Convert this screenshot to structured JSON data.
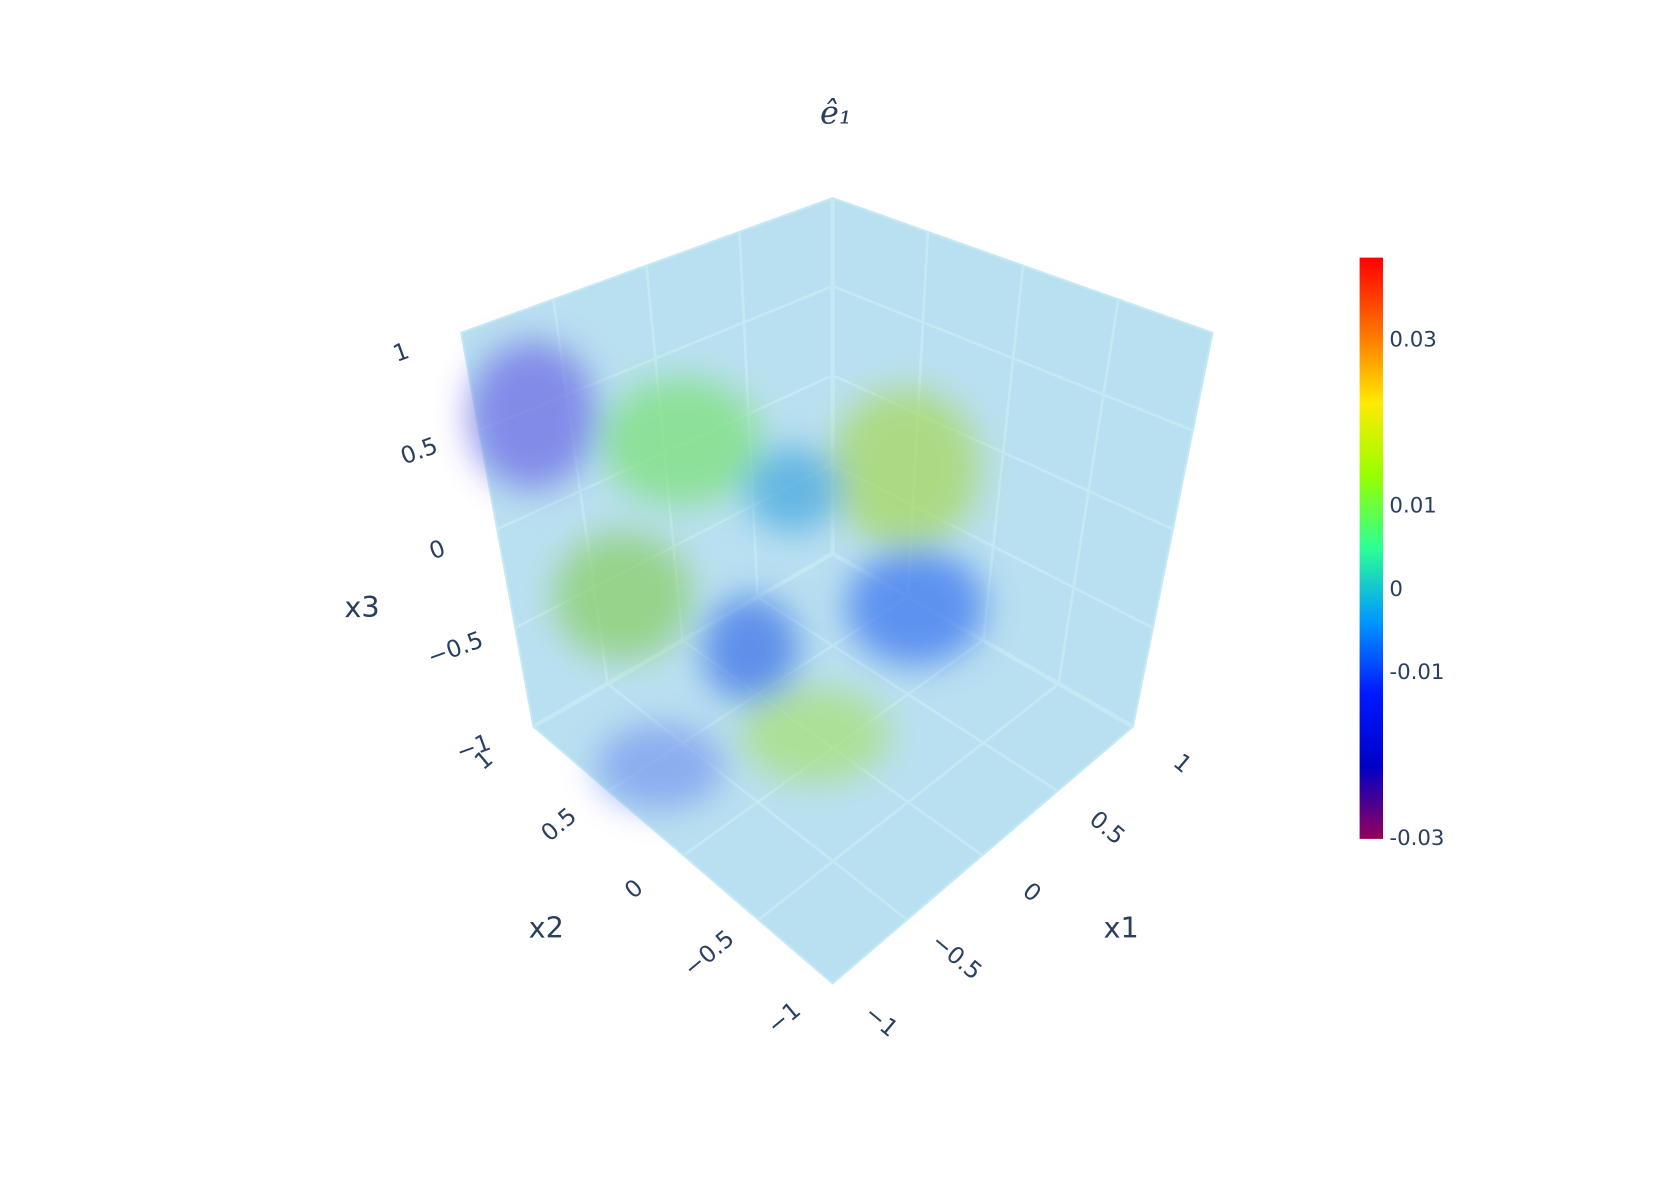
{
  "chart_data": {
    "type": "volume",
    "title": "ê₁",
    "axes": [
      {
        "title": "x1",
        "lim": [
          -1,
          1
        ],
        "ticks": [
          {
            "value": -1,
            "label": "−1"
          },
          {
            "value": -0.5,
            "label": "−0.5"
          },
          0,
          0.5,
          1
        ]
      },
      {
        "title": "x2",
        "lim": [
          -1,
          1
        ],
        "ticks": [
          {
            "value": -1,
            "label": "−1"
          },
          {
            "value": -0.5,
            "label": "−0.5"
          },
          0,
          0.5,
          1
        ]
      },
      {
        "title": "x3",
        "lim": [
          -1,
          1
        ],
        "ticks": [
          {
            "value": -1,
            "label": "−1"
          },
          {
            "value": -0.5,
            "label": "−0.5"
          },
          0,
          0.5,
          1
        ]
      }
    ],
    "colorbar": {
      "lim": [
        -0.03,
        0.04
      ],
      "ticks": [
        -0.03,
        -0.01,
        0,
        0.01,
        0.03
      ],
      "colorscale": [
        "#96005a",
        "#0000c8",
        "#0019ff",
        "#0098ff",
        "#2cff96",
        "#97ff00",
        "#ffea00",
        "#ff6f00",
        "#ff0000"
      ]
    },
    "grid": true
  }
}
